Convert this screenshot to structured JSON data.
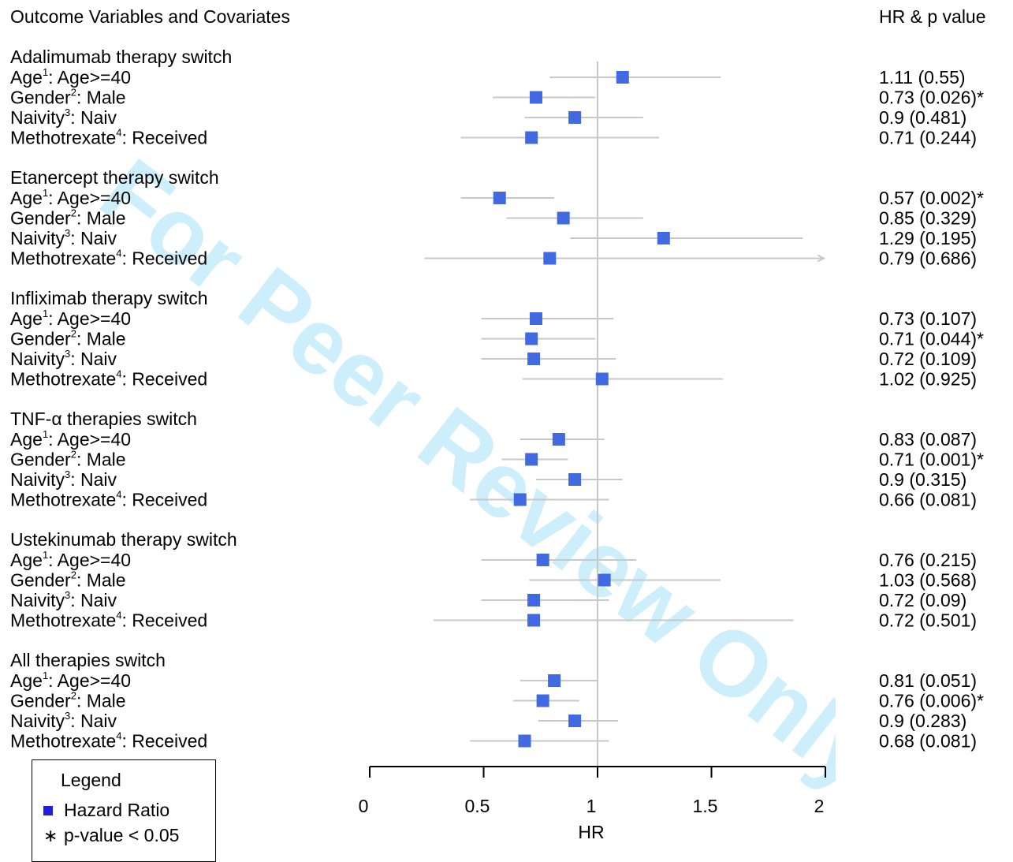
{
  "header": {
    "left_title": "Outcome Variables and Covariates",
    "right_title": "HR & p value"
  },
  "legend": {
    "title": "Legend",
    "hazard_label": "Hazard Ratio",
    "pvalue_label": "p-value < 0.05",
    "marker_color": "#1f1fe0"
  },
  "watermark": {
    "text": "For Peer Review Only",
    "color": "#cdeefb"
  },
  "colors": {
    "point": "#4169e1",
    "ci_line": "#c8c8c8",
    "ref_line": "#c8c8c8"
  },
  "chart_data": {
    "type": "forest",
    "xlabel": "HR",
    "xlim": [
      0,
      2
    ],
    "x_ticks": [
      0,
      0.5,
      1,
      1.5,
      2
    ],
    "x_tick_labels": [
      "0",
      "0.5",
      "1",
      "1.5",
      "2"
    ],
    "reference_line": 1,
    "groups": [
      {
        "title": "Adalimumab therapy switch",
        "rows": [
          {
            "name": "Age",
            "sup": "1",
            "level": "Age>=40",
            "hr": 1.11,
            "lo": 0.79,
            "hi": 1.54,
            "hr_text": "1.11 (0.55)",
            "sig": false
          },
          {
            "name": "Gender",
            "sup": "2",
            "level": "Male",
            "hr": 0.73,
            "lo": 0.54,
            "hi": 0.99,
            "hr_text": "0.73 (0.026)*",
            "sig": true
          },
          {
            "name": "Naivity",
            "sup": "3",
            "level": "Naiv",
            "hr": 0.9,
            "lo": 0.68,
            "hi": 1.2,
            "hr_text": "0.9 (0.481)",
            "sig": false
          },
          {
            "name": "Methotrexate",
            "sup": "4",
            "level": "Received",
            "hr": 0.71,
            "lo": 0.4,
            "hi": 1.27,
            "hr_text": "0.71 (0.244)",
            "sig": false
          }
        ]
      },
      {
        "title": "Etanercept therapy switch",
        "rows": [
          {
            "name": "Age",
            "sup": "1",
            "level": "Age>=40",
            "hr": 0.57,
            "lo": 0.4,
            "hi": 0.81,
            "hr_text": "0.57 (0.002)*",
            "sig": true
          },
          {
            "name": "Gender",
            "sup": "2",
            "level": "Male",
            "hr": 0.85,
            "lo": 0.6,
            "hi": 1.2,
            "hr_text": "0.85 (0.329)",
            "sig": false
          },
          {
            "name": "Naivity",
            "sup": "3",
            "level": "Naiv",
            "hr": 1.29,
            "lo": 0.88,
            "hi": 1.9,
            "hr_text": "1.29 (0.195)",
            "sig": false
          },
          {
            "name": "Methotrexate",
            "sup": "4",
            "level": "Received",
            "hr": 0.79,
            "lo": 0.24,
            "hi": 2.0,
            "hr_text": "0.79 (0.686)",
            "sig": false,
            "arrow": true
          }
        ]
      },
      {
        "title": "Infliximab therapy switch",
        "rows": [
          {
            "name": "Age",
            "sup": "1",
            "level": "Age>=40",
            "hr": 0.73,
            "lo": 0.49,
            "hi": 1.07,
            "hr_text": "0.73 (0.107)",
            "sig": false
          },
          {
            "name": "Gender",
            "sup": "2",
            "level": "Male",
            "hr": 0.71,
            "lo": 0.49,
            "hi": 0.99,
            "hr_text": "0.71 (0.044)*",
            "sig": true
          },
          {
            "name": "Naivity",
            "sup": "3",
            "level": "Naiv",
            "hr": 0.72,
            "lo": 0.49,
            "hi": 1.08,
            "hr_text": "0.72 (0.109)",
            "sig": false
          },
          {
            "name": "Methotrexate",
            "sup": "4",
            "level": "Received",
            "hr": 1.02,
            "lo": 0.67,
            "hi": 1.55,
            "hr_text": "1.02 (0.925)",
            "sig": false
          }
        ]
      },
      {
        "title": "TNF-α therapies switch",
        "rows": [
          {
            "name": "Age",
            "sup": "1",
            "level": "Age>=40",
            "hr": 0.83,
            "lo": 0.66,
            "hi": 1.03,
            "hr_text": "0.83 (0.087)",
            "sig": false
          },
          {
            "name": "Gender",
            "sup": "2",
            "level": "Male",
            "hr": 0.71,
            "lo": 0.58,
            "hi": 0.87,
            "hr_text": "0.71 (0.001)*",
            "sig": true
          },
          {
            "name": "Naivity",
            "sup": "3",
            "level": "Naiv",
            "hr": 0.9,
            "lo": 0.73,
            "hi": 1.11,
            "hr_text": "0.9 (0.315)",
            "sig": false
          },
          {
            "name": "Methotrexate",
            "sup": "4",
            "level": "Received",
            "hr": 0.66,
            "lo": 0.44,
            "hi": 1.05,
            "hr_text": "0.66 (0.081)",
            "sig": false
          }
        ]
      },
      {
        "title": "Ustekinumab therapy switch",
        "rows": [
          {
            "name": "Age",
            "sup": "1",
            "level": "Age>=40",
            "hr": 0.76,
            "lo": 0.49,
            "hi": 1.17,
            "hr_text": "0.76 (0.215)",
            "sig": false
          },
          {
            "name": "Gender",
            "sup": "2",
            "level": "Male",
            "hr": 1.03,
            "lo": 0.7,
            "hi": 1.54,
            "hr_text": "1.03 (0.568)",
            "sig": false
          },
          {
            "name": "Naivity",
            "sup": "3",
            "level": "Naiv",
            "hr": 0.72,
            "lo": 0.49,
            "hi": 1.05,
            "hr_text": "0.72 (0.09)",
            "sig": false
          },
          {
            "name": "Methotrexate",
            "sup": "4",
            "level": "Received",
            "hr": 0.72,
            "lo": 0.28,
            "hi": 1.86,
            "hr_text": "0.72 (0.501)",
            "sig": false
          }
        ]
      },
      {
        "title": "All therapies switch",
        "rows": [
          {
            "name": "Age",
            "sup": "1",
            "level": "Age>=40",
            "hr": 0.81,
            "lo": 0.66,
            "hi": 1.0,
            "hr_text": "0.81 (0.051)",
            "sig": false
          },
          {
            "name": "Gender",
            "sup": "2",
            "level": "Male",
            "hr": 0.76,
            "lo": 0.63,
            "hi": 0.92,
            "hr_text": "0.76 (0.006)*",
            "sig": true
          },
          {
            "name": "Naivity",
            "sup": "3",
            "level": "Naiv",
            "hr": 0.9,
            "lo": 0.74,
            "hi": 1.09,
            "hr_text": "0.9 (0.283)",
            "sig": false
          },
          {
            "name": "Methotrexate",
            "sup": "4",
            "level": "Received",
            "hr": 0.68,
            "lo": 0.44,
            "hi": 1.05,
            "hr_text": "0.68 (0.081)",
            "sig": false
          }
        ]
      }
    ]
  }
}
